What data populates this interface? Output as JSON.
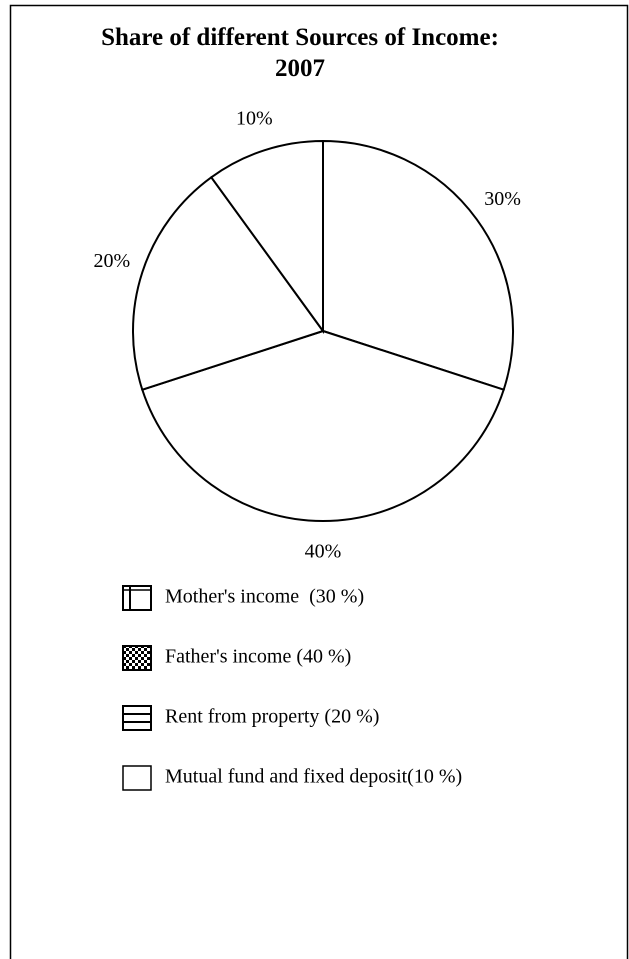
{
  "chart_data": {
    "type": "pie",
    "title": "Share of different Sources of Income: 2007",
    "categories": [
      "Mother's income  (30 %)",
      "Father's income (40 %)",
      "Rent from property (20 %)",
      "Mutual fund and fixed deposit(10 %)"
    ],
    "values": [
      30,
      40,
      20,
      10
    ],
    "value_labels": [
      "30%",
      "40%",
      "20%",
      "10%"
    ],
    "color": "#ffffff"
  }
}
